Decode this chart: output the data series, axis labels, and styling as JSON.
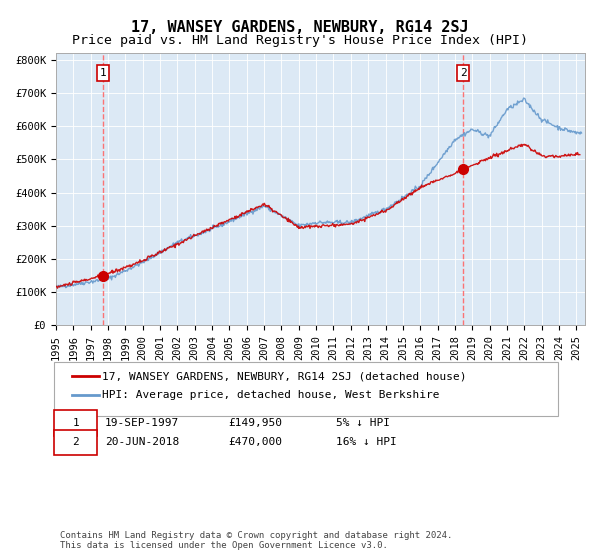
{
  "title": "17, WANSEY GARDENS, NEWBURY, RG14 2SJ",
  "subtitle": "Price paid vs. HM Land Registry's House Price Index (HPI)",
  "plot_bg_color": "#dce9f5",
  "ylabel_ticks": [
    "£0",
    "£100K",
    "£200K",
    "£300K",
    "£400K",
    "£500K",
    "£600K",
    "£700K",
    "£800K"
  ],
  "ytick_values": [
    0,
    100000,
    200000,
    300000,
    400000,
    500000,
    600000,
    700000,
    800000
  ],
  "ylim": [
    0,
    820000
  ],
  "xlim_start": 1995.0,
  "xlim_end": 2025.5,
  "year_ticks": [
    1995,
    1996,
    1997,
    1998,
    1999,
    2000,
    2001,
    2002,
    2003,
    2004,
    2005,
    2006,
    2007,
    2008,
    2009,
    2010,
    2011,
    2012,
    2013,
    2014,
    2015,
    2016,
    2017,
    2018,
    2019,
    2020,
    2021,
    2022,
    2023,
    2024,
    2025
  ],
  "sale1_x": 1997.72,
  "sale1_y": 149950,
  "sale1_label": "1",
  "sale2_x": 2018.47,
  "sale2_y": 470000,
  "sale2_label": "2",
  "red_line_color": "#cc0000",
  "blue_line_color": "#6699cc",
  "dot_color": "#cc0000",
  "dashed_color": "#ff6666",
  "legend_label1": "17, WANSEY GARDENS, NEWBURY, RG14 2SJ (detached house)",
  "legend_label2": "HPI: Average price, detached house, West Berkshire",
  "annotation1_date": "19-SEP-1997",
  "annotation1_price": "£149,950",
  "annotation1_hpi": "5% ↓ HPI",
  "annotation2_date": "20-JUN-2018",
  "annotation2_price": "£470,000",
  "annotation2_hpi": "16% ↓ HPI",
  "footer": "Contains HM Land Registry data © Crown copyright and database right 2024.\nThis data is licensed under the Open Government Licence v3.0.",
  "title_fontsize": 11,
  "subtitle_fontsize": 9.5,
  "tick_fontsize": 7.5,
  "legend_fontsize": 8,
  "annotation_fontsize": 8,
  "footer_fontsize": 6.5,
  "hpi_waypoints_x": [
    1995,
    1998,
    2000,
    2002,
    2004,
    2007,
    2008,
    2009,
    2010,
    2012,
    2014,
    2016,
    2018,
    2019,
    2020,
    2021,
    2022,
    2023,
    2024,
    2025
  ],
  "hpi_waypoints_y": [
    115000,
    140000,
    190000,
    250000,
    290000,
    360000,
    330000,
    300000,
    310000,
    310000,
    350000,
    420000,
    560000,
    590000,
    570000,
    650000,
    680000,
    620000,
    595000,
    580000
  ],
  "red_waypoints_x": [
    1995,
    1997.72,
    2000,
    2004,
    2007,
    2009,
    2012,
    2014,
    2016,
    2018.47,
    2020,
    2022,
    2023,
    2024,
    2025
  ],
  "red_waypoints_y": [
    115000,
    149950,
    195000,
    295000,
    365000,
    295000,
    305000,
    345000,
    415000,
    470000,
    505000,
    545000,
    510000,
    510000,
    515000
  ]
}
